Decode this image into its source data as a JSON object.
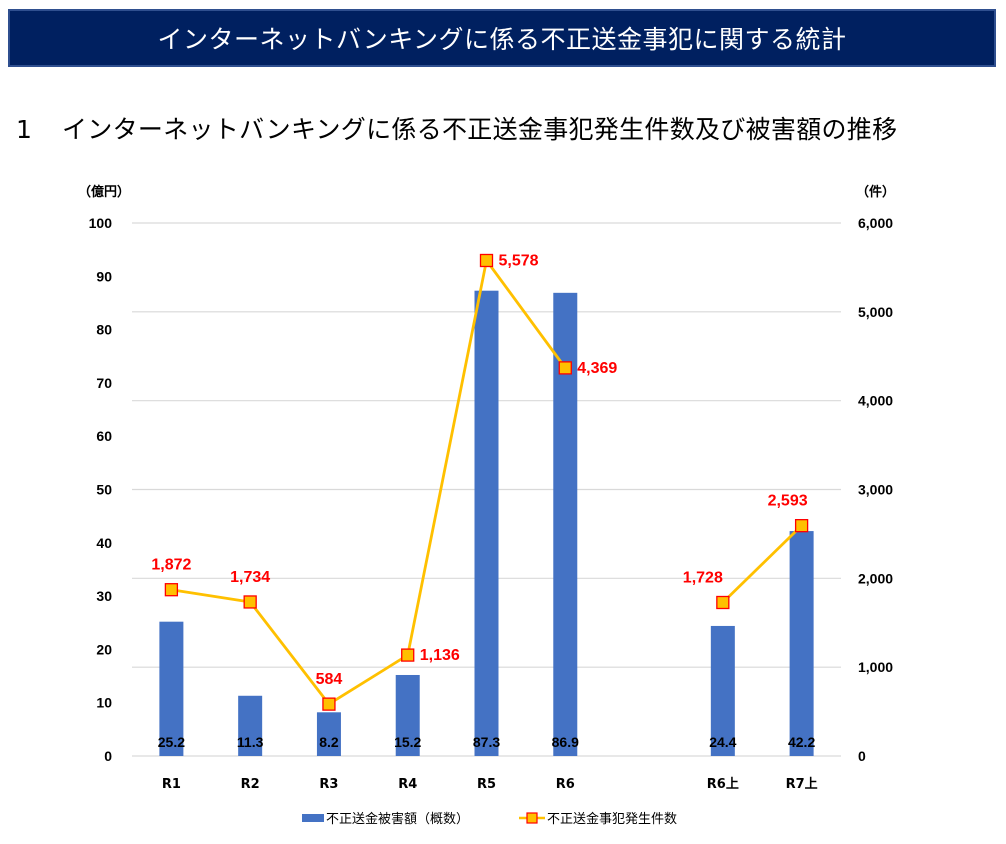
{
  "header": {
    "title": "インターネットバンキングに係る不正送金事犯に関する統計"
  },
  "section": {
    "number": "1",
    "title": "インターネットバンキングに係る不正送金事犯発生件数及び被害額の推移"
  },
  "chart_data": {
    "type": "bar+line",
    "title": "インターネットバンキングに係る不正送金事犯発生件数及び被害額の推移",
    "categories": [
      "R1",
      "R2",
      "R3",
      "R4",
      "R5",
      "R6",
      "",
      "R6上",
      "R7上"
    ],
    "series": [
      {
        "name": "不正送金被害額（概数）",
        "type": "bar",
        "axis": "left",
        "values": [
          25.2,
          11.3,
          8.2,
          15.2,
          87.3,
          86.9,
          null,
          24.4,
          42.2
        ],
        "labels": [
          "25.2",
          "11.3",
          "8.2",
          "15.2",
          "87.3",
          "86.9",
          "",
          "24.4",
          "42.2"
        ],
        "color": "#4472c4"
      },
      {
        "name": "不正送金事犯発生件数",
        "type": "line",
        "axis": "right",
        "segments": [
          [
            0,
            5
          ],
          [
            7,
            8
          ]
        ],
        "values": [
          1872,
          1734,
          584,
          1136,
          5578,
          4369,
          null,
          1728,
          2593
        ],
        "labels": [
          "1,872",
          "1,734",
          "584",
          "1,136",
          "5,578",
          "4,369",
          "",
          "1,728",
          "2,593"
        ],
        "color": "#ffc000",
        "marker_fill": "#ffc000",
        "marker_edge": "#ff0000",
        "label_color": "#ff0000"
      }
    ],
    "left_axis": {
      "unit": "（億円）",
      "ylim": [
        0,
        100
      ],
      "ticks": [
        0,
        10,
        20,
        30,
        40,
        50,
        60,
        70,
        80,
        90,
        100
      ],
      "tick_labels": [
        "0",
        "10",
        "20",
        "30",
        "40",
        "50",
        "60",
        "70",
        "80",
        "90",
        "100"
      ]
    },
    "right_axis": {
      "unit": "（件）",
      "ylim": [
        0,
        6000
      ],
      "ticks": [
        0,
        1000,
        2000,
        3000,
        4000,
        5000,
        6000
      ],
      "tick_labels": [
        "0",
        "1,000",
        "2,000",
        "3,000",
        "4,000",
        "5,000",
        "6,000"
      ]
    },
    "grid": true,
    "gridlines_follow": "right_axis",
    "legend_position": "bottom",
    "legend": [
      "不正送金被害額（概数）",
      "不正送金事犯発生件数"
    ]
  }
}
